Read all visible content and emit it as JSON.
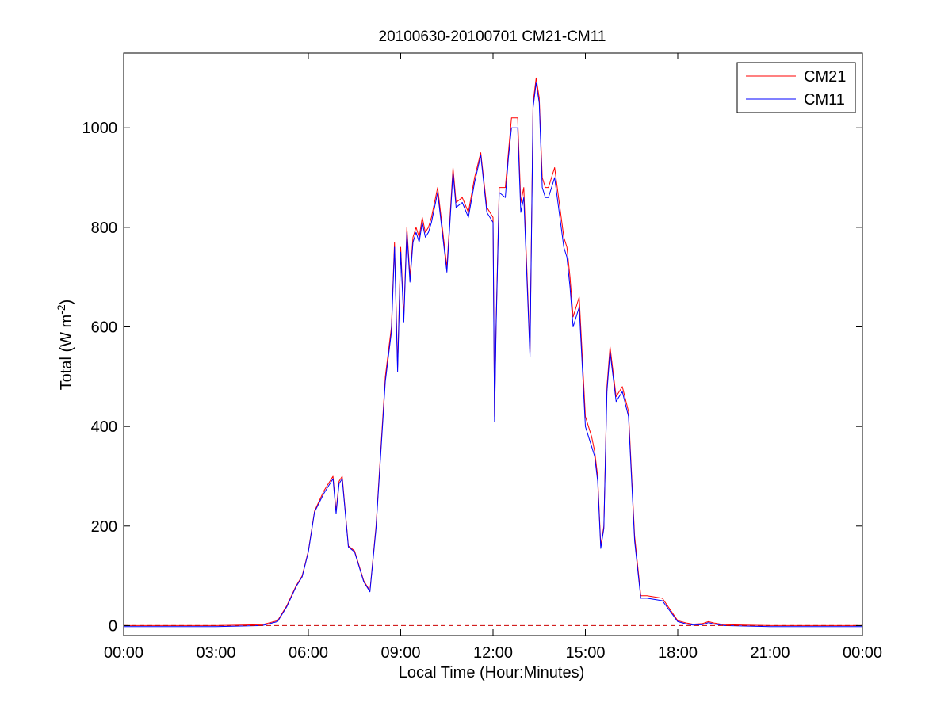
{
  "chart_data": {
    "type": "line",
    "title": "20100630-20100701 CM21-CM11",
    "xlabel": "Local Time (Hour:Minutes)",
    "ylabel_main": "Total (W m",
    "ylabel_sup": "-2",
    "ylabel_close": ")",
    "xlim": [
      0,
      24
    ],
    "ylim": [
      -20,
      1150
    ],
    "x_ticks": [
      {
        "value": 0,
        "label": "00:00"
      },
      {
        "value": 3,
        "label": "03:00"
      },
      {
        "value": 6,
        "label": "06:00"
      },
      {
        "value": 9,
        "label": "09:00"
      },
      {
        "value": 12,
        "label": "12:00"
      },
      {
        "value": 15,
        "label": "15:00"
      },
      {
        "value": 18,
        "label": "18:00"
      },
      {
        "value": 21,
        "label": "21:00"
      },
      {
        "value": 24,
        "label": "00:00"
      }
    ],
    "y_ticks": [
      {
        "value": 0,
        "label": "0"
      },
      {
        "value": 200,
        "label": "200"
      },
      {
        "value": 400,
        "label": "400"
      },
      {
        "value": 600,
        "label": "600"
      },
      {
        "value": 800,
        "label": "800"
      },
      {
        "value": 1000,
        "label": "1000"
      }
    ],
    "grid": false,
    "legend_position": "top-right",
    "zero_reference_line": {
      "y": 0,
      "color": "#cc0000",
      "style": "dashed"
    },
    "series": [
      {
        "name": "CM21",
        "color": "#ff0000",
        "x": [
          0,
          3,
          4.5,
          5.0,
          5.3,
          5.6,
          5.8,
          6.0,
          6.2,
          6.5,
          6.8,
          6.9,
          7.0,
          7.1,
          7.3,
          7.5,
          7.8,
          8.0,
          8.2,
          8.5,
          8.7,
          8.8,
          8.9,
          9.0,
          9.1,
          9.2,
          9.3,
          9.4,
          9.5,
          9.6,
          9.7,
          9.8,
          9.9,
          10.0,
          10.2,
          10.5,
          10.7,
          10.8,
          11.0,
          11.2,
          11.4,
          11.6,
          11.8,
          12.0,
          12.05,
          12.1,
          12.2,
          12.4,
          12.5,
          12.6,
          12.8,
          12.9,
          13.0,
          13.2,
          13.3,
          13.4,
          13.5,
          13.6,
          13.7,
          13.8,
          14.0,
          14.3,
          14.4,
          14.5,
          14.6,
          14.8,
          15.0,
          15.2,
          15.3,
          15.4,
          15.5,
          15.6,
          15.7,
          15.8,
          16.0,
          16.2,
          16.4,
          16.6,
          16.8,
          17.0,
          17.5,
          18.0,
          18.3,
          18.5,
          18.8,
          19.0,
          19.2,
          19.5,
          21,
          24
        ],
        "y": [
          0,
          0,
          2,
          10,
          40,
          80,
          100,
          150,
          230,
          270,
          300,
          230,
          290,
          300,
          160,
          150,
          90,
          70,
          200,
          500,
          600,
          770,
          520,
          760,
          620,
          800,
          700,
          780,
          800,
          780,
          820,
          790,
          800,
          820,
          880,
          720,
          920,
          850,
          860,
          830,
          900,
          950,
          840,
          820,
          420,
          610,
          880,
          880,
          950,
          1020,
          1020,
          850,
          880,
          550,
          1050,
          1100,
          1060,
          900,
          880,
          880,
          920,
          780,
          760,
          700,
          620,
          660,
          420,
          380,
          350,
          300,
          160,
          200,
          480,
          560,
          460,
          480,
          430,
          180,
          60,
          60,
          55,
          10,
          5,
          3,
          4,
          8,
          5,
          2,
          0,
          0
        ]
      },
      {
        "name": "CM11",
        "color": "#0000ff",
        "x": [
          0,
          3,
          4.5,
          5.0,
          5.3,
          5.6,
          5.8,
          6.0,
          6.2,
          6.5,
          6.8,
          6.9,
          7.0,
          7.1,
          7.3,
          7.5,
          7.8,
          8.0,
          8.2,
          8.5,
          8.7,
          8.8,
          8.9,
          9.0,
          9.1,
          9.2,
          9.3,
          9.4,
          9.5,
          9.6,
          9.7,
          9.8,
          9.9,
          10.0,
          10.2,
          10.5,
          10.7,
          10.8,
          11.0,
          11.2,
          11.4,
          11.6,
          11.8,
          12.0,
          12.05,
          12.1,
          12.2,
          12.4,
          12.5,
          12.6,
          12.8,
          12.9,
          13.0,
          13.2,
          13.3,
          13.4,
          13.5,
          13.6,
          13.7,
          13.8,
          14.0,
          14.3,
          14.4,
          14.5,
          14.6,
          14.8,
          15.0,
          15.2,
          15.3,
          15.4,
          15.5,
          15.6,
          15.7,
          15.8,
          16.0,
          16.2,
          16.4,
          16.6,
          16.8,
          17.0,
          17.5,
          18.0,
          18.3,
          18.5,
          18.8,
          19.0,
          19.2,
          19.5,
          21,
          24
        ],
        "y": [
          -2,
          -2,
          0,
          8,
          38,
          78,
          98,
          148,
          228,
          265,
          295,
          225,
          285,
          295,
          158,
          148,
          88,
          68,
          195,
          490,
          590,
          760,
          510,
          750,
          610,
          790,
          690,
          770,
          790,
          770,
          810,
          780,
          790,
          810,
          870,
          710,
          910,
          840,
          850,
          820,
          890,
          945,
          830,
          810,
          410,
          600,
          870,
          860,
          940,
          1000,
          1000,
          830,
          860,
          540,
          1040,
          1090,
          1050,
          880,
          860,
          860,
          900,
          760,
          740,
          680,
          600,
          640,
          400,
          360,
          340,
          290,
          155,
          195,
          470,
          550,
          450,
          470,
          420,
          170,
          55,
          55,
          50,
          8,
          3,
          1,
          2,
          6,
          3,
          0,
          -2,
          -2
        ]
      }
    ]
  }
}
